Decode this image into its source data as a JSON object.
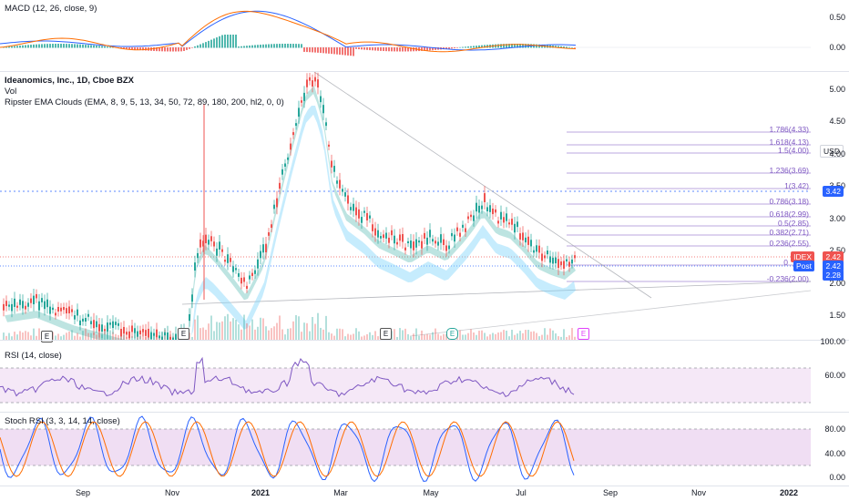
{
  "macd": {
    "legend": "MACD (12, 26, close, 9)",
    "ticks": [
      "0.50",
      "0.00"
    ]
  },
  "main": {
    "title": "Ideanomics, Inc., 1D, Cboe BZX",
    "vol_label": "Vol",
    "ema_label": "Ripster EMA Clouds (EMA, 8, 9, 5, 13, 34, 50, 72, 89, 180, 200, hl2, 0, 0)",
    "currency": "USD",
    "ticks": [
      "5.00",
      "4.50",
      "4.00",
      "3.50",
      "3.00",
      "2.50",
      "2.00",
      "1.50"
    ],
    "price_tags": {
      "fib_one": "3.42",
      "last": "2.42",
      "post": "2.42",
      "low": "2.28"
    },
    "tag_labels": {
      "symbol": "IDEX",
      "post": "Post"
    },
    "fib_levels": [
      "1.786(4.33)",
      "1.618(4.13)",
      "1.5(4.00)",
      "1.236(3.69)",
      "1(3.42)",
      "0.786(3.18)",
      "0.618(2.99)",
      "0.5(2.85)",
      "0.382(2.71)",
      "0.236(2.55)",
      "0",
      "-0.236(2.00)"
    ],
    "earnings_label": "E",
    "colors": {
      "up": "#26a69a",
      "down": "#ef5350",
      "fib": "#7e57c2",
      "tag_red": "#ef5350",
      "tag_blue": "#2962ff"
    }
  },
  "rsi": {
    "legend": "RSI (14, close)",
    "ticks": [
      "100.00",
      "60.00"
    ]
  },
  "stoch": {
    "legend": "Stoch RSI (3, 3, 14, 14, close)",
    "ticks": [
      "80.00",
      "40.00",
      "0.00"
    ]
  },
  "xaxis": {
    "labels": [
      "Sep",
      "Nov",
      "2021",
      "Mar",
      "May",
      "Jul",
      "Sep",
      "Nov",
      "2022"
    ]
  }
}
